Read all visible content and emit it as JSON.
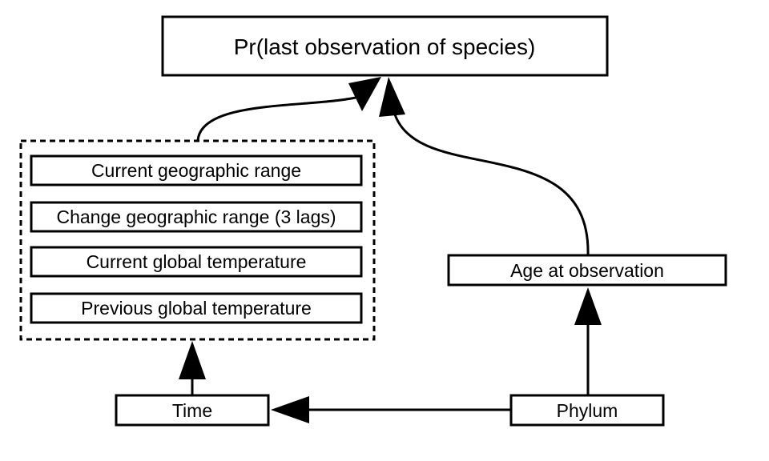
{
  "nodes": {
    "outcome": "Pr(last observation of species)",
    "current_range": "Current geographic range",
    "change_range": "Change geographic range (3 lags)",
    "current_temp": "Current global temperature",
    "previous_temp": "Previous global temperature",
    "age": "Age at observation",
    "time": "Time",
    "phylum": "Phylum"
  }
}
